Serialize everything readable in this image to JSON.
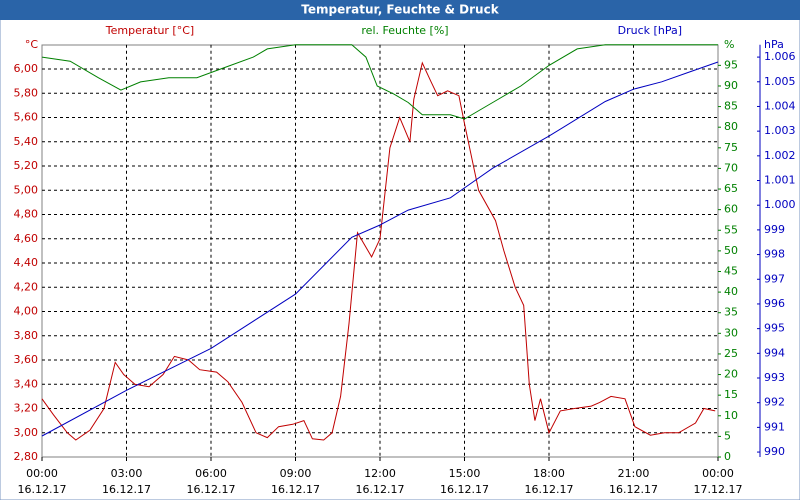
{
  "chart_data": {
    "type": "line",
    "title": "Temperatur, Feuchte & Druck",
    "xlim": [
      0,
      24
    ],
    "xticks": [
      {
        "value": 0,
        "label": "00:00"
      },
      {
        "value": 3,
        "label": "03:00"
      },
      {
        "value": 6,
        "label": "06:00"
      },
      {
        "value": 9,
        "label": "09:00"
      },
      {
        "value": 12,
        "label": "12:00"
      },
      {
        "value": 15,
        "label": "15:00"
      },
      {
        "value": 18,
        "label": "18:00"
      },
      {
        "value": 21,
        "label": "21:00"
      },
      {
        "value": 24,
        "label": "00:00"
      }
    ],
    "xtick_dates": [
      "16.12.17",
      "16.12.17",
      "16.12.17",
      "16.12.17",
      "16.12.17",
      "16.12.17",
      "16.12.17",
      "16.12.17",
      "17.12.17"
    ],
    "ylim": [
      2.8,
      6.2
    ],
    "yticks": [
      {
        "value": 2.8,
        "label": "2,80"
      },
      {
        "value": 3.0,
        "label": "3,00"
      },
      {
        "value": 3.2,
        "label": "3,20"
      },
      {
        "value": 3.4,
        "label": "3,40"
      },
      {
        "value": 3.6,
        "label": "3,60"
      },
      {
        "value": 3.8,
        "label": "3,80"
      },
      {
        "value": 4.0,
        "label": "4,00"
      },
      {
        "value": 4.2,
        "label": "4,20"
      },
      {
        "value": 4.4,
        "label": "4,40"
      },
      {
        "value": 4.6,
        "label": "4,60"
      },
      {
        "value": 4.8,
        "label": "4,80"
      },
      {
        "value": 5.0,
        "label": "5,00"
      },
      {
        "value": 5.2,
        "label": "5,20"
      },
      {
        "value": 5.4,
        "label": "5,40"
      },
      {
        "value": 5.6,
        "label": "5,60"
      },
      {
        "value": 5.8,
        "label": "5,80"
      },
      {
        "value": 6.0,
        "label": "6,00"
      }
    ],
    "y_unit": "°C",
    "y2lim": [
      0,
      100
    ],
    "y2ticks": [
      0,
      5,
      10,
      15,
      20,
      25,
      30,
      35,
      40,
      45,
      50,
      55,
      60,
      65,
      70,
      75,
      80,
      85,
      90,
      95
    ],
    "y2_unit": "%",
    "y3lim": [
      989.8,
      1006.5
    ],
    "y3ticks": [
      990,
      991,
      992,
      993,
      994,
      995,
      996,
      997,
      998,
      999,
      {
        "value": 1000,
        "label": "1.000"
      },
      {
        "value": 1001,
        "label": "1.001"
      },
      {
        "value": 1002,
        "label": "1.002"
      },
      {
        "value": 1003,
        "label": "1.003"
      },
      {
        "value": 1004,
        "label": "1.004"
      },
      {
        "value": 1005,
        "label": "1.005"
      },
      {
        "value": 1006,
        "label": "1.006"
      }
    ],
    "y3_unit": "hPa",
    "grid": true,
    "series": [
      {
        "name": "Temperatur [°C]",
        "color": "#c00000",
        "axis": "y",
        "x": [
          0,
          0.4,
          0.9,
          1.2,
          1.7,
          2.2,
          2.6,
          2.9,
          3.3,
          3.8,
          4.3,
          4.7,
          5.2,
          5.6,
          6.2,
          6.6,
          7.1,
          7.6,
          8.0,
          8.4,
          8.9,
          9.3,
          9.6,
          10.0,
          10.3,
          10.6,
          10.9,
          11.2,
          11.7,
          12.0,
          12.35,
          12.7,
          13.06,
          13.2,
          13.5,
          13.8,
          14.05,
          14.4,
          14.8,
          15.0,
          15.5,
          16.1,
          16.4,
          16.8,
          17.1,
          17.3,
          17.5,
          17.7,
          18.0,
          18.4,
          18.9,
          19.5,
          19.8,
          20.2,
          20.7,
          21.05,
          21.6,
          22.1,
          22.6,
          23.2,
          23.5,
          23.9
        ],
        "values": [
          3.28,
          3.15,
          3.0,
          2.94,
          3.02,
          3.2,
          3.58,
          3.48,
          3.4,
          3.38,
          3.48,
          3.63,
          3.6,
          3.52,
          3.5,
          3.42,
          3.25,
          3.0,
          2.96,
          3.05,
          3.07,
          3.1,
          2.95,
          2.94,
          3.0,
          3.3,
          3.9,
          4.65,
          4.45,
          4.6,
          5.35,
          5.6,
          5.4,
          5.75,
          6.05,
          5.9,
          5.78,
          5.82,
          5.78,
          5.55,
          5.0,
          4.75,
          4.5,
          4.2,
          4.05,
          3.4,
          3.1,
          3.28,
          3.0,
          3.18,
          3.2,
          3.22,
          3.25,
          3.3,
          3.28,
          3.05,
          2.98,
          3.0,
          3.0,
          3.08,
          3.2,
          3.18
        ]
      },
      {
        "name": "rel. Feuchte [%]",
        "color": "#008000",
        "axis": "y2",
        "x": [
          0,
          1,
          2,
          2.8,
          3.5,
          4.5,
          5.5,
          6.5,
          7.5,
          8,
          9,
          11,
          11.5,
          11.9,
          12.5,
          13,
          13.5,
          14.5,
          15,
          16,
          17,
          18,
          19,
          20,
          24
        ],
        "values": [
          97,
          96,
          92,
          89,
          91,
          92,
          92,
          94.5,
          97,
          99,
          100,
          100,
          97,
          90,
          88,
          86,
          83,
          83,
          82,
          86,
          90,
          95,
          99,
          100,
          100
        ]
      },
      {
        "name": "Druck [hPa]",
        "color": "#0000c0",
        "axis": "y3",
        "x": [
          0,
          3,
          6,
          9,
          11,
          12,
          13,
          14.5,
          15,
          16,
          18,
          20,
          21,
          22,
          23,
          24
        ],
        "values": [
          990.65,
          992.5,
          994.2,
          996.4,
          998.7,
          999.2,
          999.8,
          1000.3,
          1000.7,
          1001.5,
          1002.8,
          1004.2,
          1004.7,
          1005.0,
          1005.4,
          1005.8
        ]
      }
    ]
  }
}
